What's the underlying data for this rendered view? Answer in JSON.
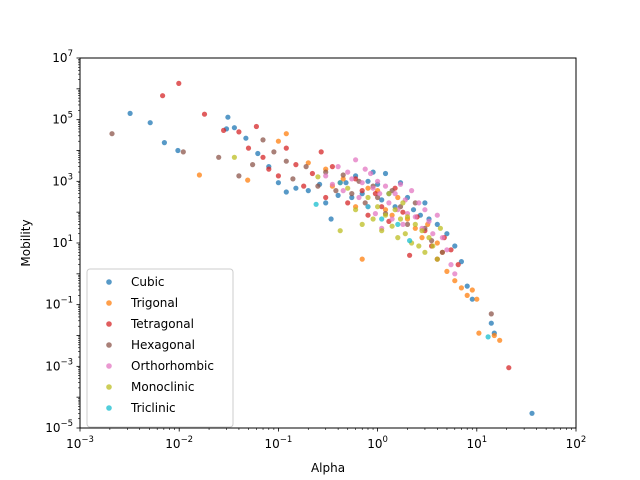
{
  "chart_data": {
    "type": "scatter",
    "xlabel": "Alpha",
    "ylabel": "Mobility",
    "x_scale": "log",
    "y_scale": "log",
    "xlim": [
      0.001,
      100
    ],
    "ylim": [
      1e-05,
      10000000
    ],
    "x_ticks": [
      {
        "value": 0.001,
        "base": "10",
        "exp": "−3"
      },
      {
        "value": 0.01,
        "base": "10",
        "exp": "−2"
      },
      {
        "value": 0.1,
        "base": "10",
        "exp": "−1"
      },
      {
        "value": 1,
        "base": "10",
        "exp": "0"
      },
      {
        "value": 10,
        "base": "10",
        "exp": "1"
      },
      {
        "value": 100,
        "base": "10",
        "exp": "2"
      }
    ],
    "y_ticks": [
      {
        "value": 1e-05,
        "base": "10",
        "exp": "−5"
      },
      {
        "value": 0.001,
        "base": "10",
        "exp": "−3"
      },
      {
        "value": 0.1,
        "base": "10",
        "exp": "−1"
      },
      {
        "value": 10,
        "base": "10",
        "exp": "1"
      },
      {
        "value": 1000,
        "base": "10",
        "exp": "3"
      },
      {
        "value": 100000,
        "base": "10",
        "exp": "5"
      },
      {
        "value": 10000000,
        "base": "10",
        "exp": "7"
      }
    ],
    "grid": false,
    "legend_position": "lower-left",
    "series": [
      {
        "name": "Cubic",
        "color": "#1f77b4",
        "points": [
          [
            0.0032,
            160000
          ],
          [
            0.0051,
            80000
          ],
          [
            0.0071,
            18000
          ],
          [
            0.0097,
            10000
          ],
          [
            0.03,
            50000
          ],
          [
            0.031,
            120000
          ],
          [
            0.036,
            55000
          ],
          [
            0.047,
            25000
          ],
          [
            0.062,
            8000
          ],
          [
            0.08,
            3000
          ],
          [
            0.1,
            900
          ],
          [
            0.12,
            450
          ],
          [
            0.15,
            600
          ],
          [
            0.2,
            500
          ],
          [
            0.26,
            800
          ],
          [
            0.3,
            200
          ],
          [
            0.34,
            60
          ],
          [
            0.4,
            350
          ],
          [
            0.48,
            900
          ],
          [
            0.55,
            300
          ],
          [
            0.6,
            1500
          ],
          [
            0.7,
            400
          ],
          [
            0.8,
            1000
          ],
          [
            0.9,
            2000
          ],
          [
            1.0,
            800
          ],
          [
            1.1,
            250
          ],
          [
            1.2,
            1800
          ],
          [
            1.3,
            400
          ],
          [
            1.5,
            150
          ],
          [
            1.7,
            900
          ],
          [
            2.0,
            300
          ],
          [
            2.3,
            120
          ],
          [
            2.7,
            80
          ],
          [
            3.0,
            200
          ],
          [
            3.3,
            60
          ],
          [
            4.0,
            40
          ],
          [
            5.0,
            20
          ],
          [
            6.0,
            8
          ],
          [
            7.0,
            2.5
          ],
          [
            8.0,
            0.4
          ],
          [
            9.0,
            0.15
          ],
          [
            14.0,
            0.025
          ],
          [
            15.0,
            0.012
          ],
          [
            36.0,
            3e-05
          ]
        ]
      },
      {
        "name": "Trigonal",
        "color": "#ff7f0e",
        "points": [
          [
            0.016,
            1600
          ],
          [
            0.049,
            1100
          ],
          [
            0.1,
            20000
          ],
          [
            0.12,
            35000
          ],
          [
            0.2,
            4000
          ],
          [
            0.3,
            2500
          ],
          [
            0.35,
            700
          ],
          [
            0.45,
            1200
          ],
          [
            0.6,
            150
          ],
          [
            0.7,
            3
          ],
          [
            0.8,
            600
          ],
          [
            1.0,
            500
          ],
          [
            1.2,
            120
          ],
          [
            1.4,
            80
          ],
          [
            1.6,
            300
          ],
          [
            2.0,
            60
          ],
          [
            2.4,
            30
          ],
          [
            2.8,
            15
          ],
          [
            3.2,
            40
          ],
          [
            4.0,
            10
          ],
          [
            4.5,
            5
          ],
          [
            5.0,
            1.2
          ],
          [
            6.0,
            0.6
          ],
          [
            7.0,
            0.35
          ],
          [
            8.0,
            0.2
          ],
          [
            9.0,
            0.3
          ],
          [
            10.0,
            0.15
          ],
          [
            10.5,
            0.012
          ],
          [
            15.0,
            0.01
          ],
          [
            17.0,
            0.007
          ]
        ]
      },
      {
        "name": "Tetragonal",
        "color": "#d62728",
        "points": [
          [
            0.0068,
            600000
          ],
          [
            0.0099,
            1500000
          ],
          [
            0.018,
            150000
          ],
          [
            0.028,
            45000
          ],
          [
            0.04,
            40000
          ],
          [
            0.05,
            12000
          ],
          [
            0.06,
            60000
          ],
          [
            0.07,
            6000
          ],
          [
            0.08,
            2500
          ],
          [
            0.1,
            1500
          ],
          [
            0.12,
            12000
          ],
          [
            0.15,
            3500
          ],
          [
            0.18,
            700
          ],
          [
            0.22,
            1800
          ],
          [
            0.27,
            9000
          ],
          [
            0.3,
            300
          ],
          [
            0.35,
            3000
          ],
          [
            0.42,
            900
          ],
          [
            0.5,
            200
          ],
          [
            0.6,
            1200
          ],
          [
            0.7,
            500
          ],
          [
            0.8,
            80
          ],
          [
            0.95,
            400
          ],
          [
            1.1,
            150
          ],
          [
            1.3,
            50
          ],
          [
            1.5,
            600
          ],
          [
            1.8,
            100
          ],
          [
            2.1,
            4
          ],
          [
            2.5,
            70
          ],
          [
            3.0,
            25
          ],
          [
            3.5,
            8
          ],
          [
            4.0,
            3
          ],
          [
            4.7,
            15
          ],
          [
            5.5,
            6
          ],
          [
            6.5,
            2
          ],
          [
            21.0,
            0.0009
          ]
        ]
      },
      {
        "name": "Hexagonal",
        "color": "#8c564b",
        "points": [
          [
            0.0021,
            35000
          ],
          [
            0.011,
            9000
          ],
          [
            0.025,
            6000
          ],
          [
            0.04,
            1500
          ],
          [
            0.055,
            3500
          ],
          [
            0.07,
            22000
          ],
          [
            0.09,
            9000
          ],
          [
            0.12,
            4500
          ],
          [
            0.14,
            1200
          ],
          [
            0.19,
            3000
          ],
          [
            0.25,
            700
          ],
          [
            0.3,
            2000
          ],
          [
            0.38,
            500
          ],
          [
            0.45,
            1600
          ],
          [
            0.55,
            400
          ],
          [
            0.65,
            1000
          ],
          [
            0.75,
            200
          ],
          [
            0.9,
            700
          ],
          [
            1.0,
            300
          ],
          [
            1.2,
            90
          ],
          [
            1.4,
            500
          ],
          [
            1.7,
            150
          ],
          [
            2.0,
            40
          ],
          [
            2.4,
            200
          ],
          [
            3.0,
            30
          ],
          [
            3.5,
            12
          ],
          [
            4.5,
            5
          ],
          [
            14.0,
            0.05
          ]
        ]
      },
      {
        "name": "Orthorhombic",
        "color": "#e377c2",
        "points": [
          [
            0.3,
            1500
          ],
          [
            0.35,
            800
          ],
          [
            0.4,
            3000
          ],
          [
            0.45,
            500
          ],
          [
            0.5,
            2000
          ],
          [
            0.55,
            1200
          ],
          [
            0.6,
            5000
          ],
          [
            0.65,
            300
          ],
          [
            0.7,
            900
          ],
          [
            0.75,
            2500
          ],
          [
            0.8,
            150
          ],
          [
            0.85,
            1800
          ],
          [
            0.9,
            600
          ],
          [
            0.95,
            90
          ],
          [
            1.0,
            1000
          ],
          [
            1.05,
            400
          ],
          [
            1.1,
            30
          ],
          [
            1.2,
            700
          ],
          [
            1.3,
            200
          ],
          [
            1.4,
            60
          ],
          [
            1.5,
            400
          ],
          [
            1.6,
            120
          ],
          [
            1.7,
            800
          ],
          [
            1.8,
            40
          ],
          [
            1.9,
            250
          ],
          [
            2.0,
            90
          ],
          [
            2.2,
            500
          ],
          [
            2.4,
            70
          ],
          [
            2.6,
            200
          ],
          [
            2.8,
            30
          ],
          [
            3.0,
            120
          ],
          [
            3.3,
            50
          ],
          [
            3.6,
            20
          ],
          [
            4.0,
            80
          ],
          [
            4.5,
            15
          ],
          [
            5.0,
            6
          ],
          [
            5.5,
            2
          ],
          [
            6.0,
            1
          ]
        ]
      },
      {
        "name": "Monoclinic",
        "color": "#bcbd22",
        "points": [
          [
            0.036,
            6000
          ],
          [
            0.25,
            1400
          ],
          [
            0.42,
            25
          ],
          [
            0.5,
            600
          ],
          [
            0.6,
            120
          ],
          [
            0.7,
            40
          ],
          [
            0.8,
            300
          ],
          [
            0.9,
            60
          ],
          [
            1.0,
            150
          ],
          [
            1.1,
            25
          ],
          [
            1.2,
            80
          ],
          [
            1.3,
            400
          ],
          [
            1.4,
            35
          ],
          [
            1.5,
            120
          ],
          [
            1.6,
            15
          ],
          [
            1.7,
            60
          ],
          [
            1.8,
            200
          ],
          [
            1.9,
            20
          ],
          [
            2.0,
            70
          ],
          [
            2.2,
            10
          ],
          [
            2.4,
            40
          ],
          [
            2.6,
            8
          ],
          [
            2.8,
            25
          ],
          [
            3.0,
            5
          ],
          [
            3.3,
            15
          ],
          [
            3.6,
            8
          ],
          [
            4.0,
            3
          ],
          [
            4.3,
            30
          ]
        ]
      },
      {
        "name": "Triclinic",
        "color": "#17becf",
        "points": [
          [
            0.24,
            180
          ],
          [
            0.42,
            900
          ],
          [
            0.8,
            150
          ],
          [
            1.1,
            60
          ],
          [
            1.6,
            40
          ],
          [
            2.1,
            12
          ],
          [
            13.0,
            0.009
          ]
        ]
      }
    ]
  }
}
